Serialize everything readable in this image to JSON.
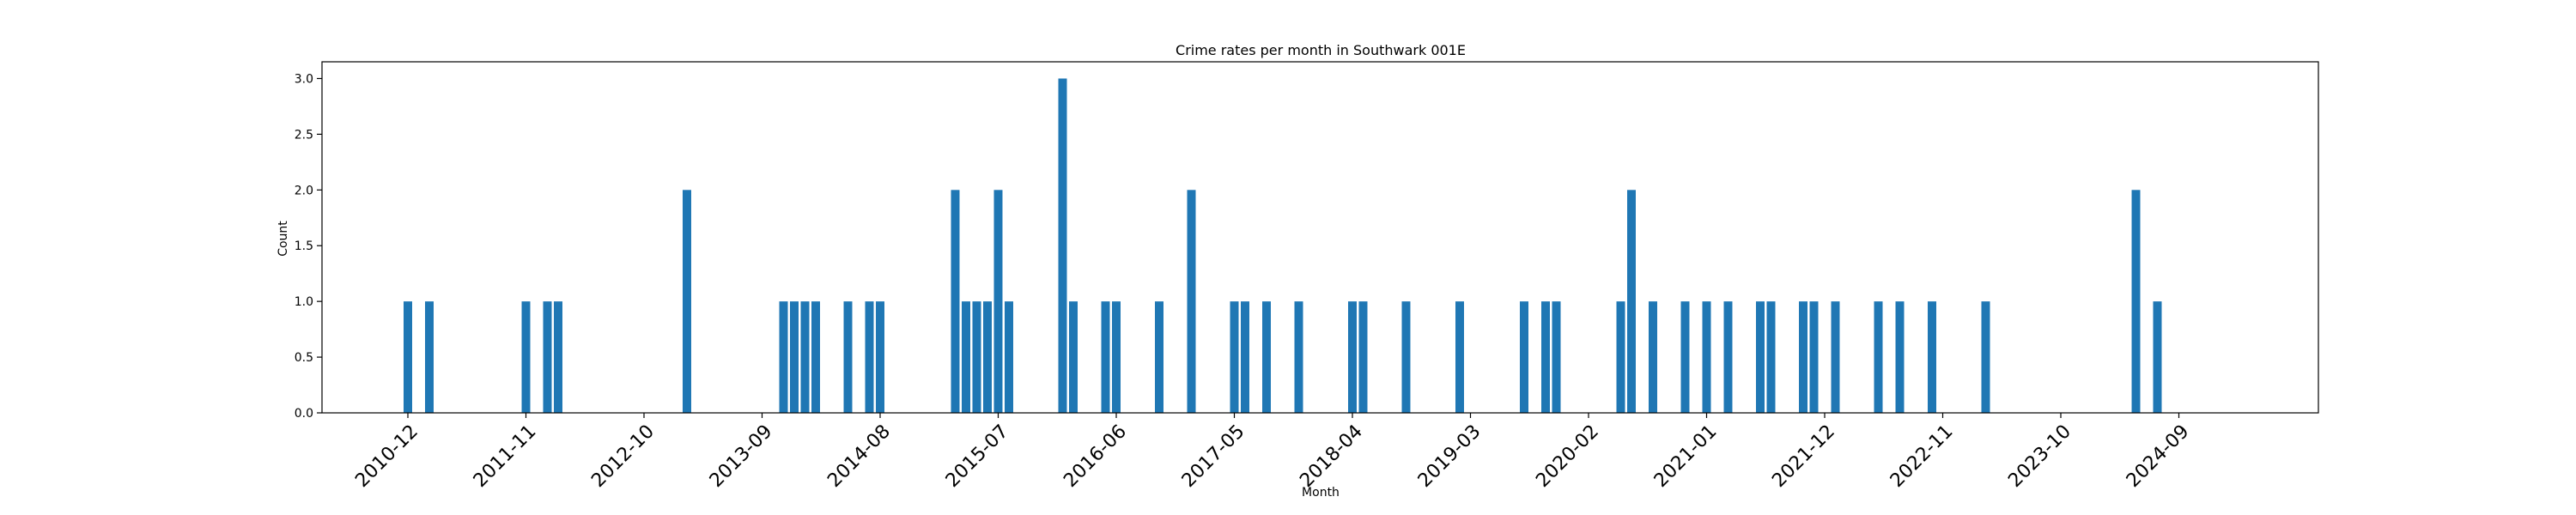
{
  "chart_data": {
    "type": "bar",
    "title": "Crime rates per month in Southwark 001E",
    "xlabel": "Month",
    "ylabel": "Count",
    "ylim": [
      0,
      3.15
    ],
    "grid": false,
    "color": "#1f77b4",
    "x_range": [
      "2010-04",
      "2025-10"
    ],
    "yticks": [
      "0.0",
      "0.5",
      "1.0",
      "1.5",
      "2.0",
      "2.5",
      "3.0"
    ],
    "xticks": [
      "2010-12",
      "2011-11",
      "2012-10",
      "2013-09",
      "2014-08",
      "2015-07",
      "2016-06",
      "2017-05",
      "2018-04",
      "2019-03",
      "2020-02",
      "2021-01",
      "2021-12",
      "2022-11",
      "2023-10",
      "2024-09"
    ],
    "months": [
      "2010-12",
      "2011-02",
      "2011-11",
      "2012-01",
      "2012-02",
      "2013-02",
      "2013-11",
      "2013-12",
      "2014-01",
      "2014-02",
      "2014-05",
      "2014-07",
      "2014-08",
      "2015-03",
      "2015-04",
      "2015-05",
      "2015-06",
      "2015-07",
      "2015-08",
      "2016-01",
      "2016-02",
      "2016-05",
      "2016-06",
      "2016-10",
      "2017-01",
      "2017-05",
      "2017-06",
      "2017-08",
      "2017-11",
      "2018-04",
      "2018-05",
      "2018-09",
      "2019-02",
      "2019-08",
      "2019-10",
      "2019-11",
      "2020-05",
      "2020-06",
      "2020-08",
      "2020-11",
      "2021-01",
      "2021-03",
      "2021-06",
      "2021-07",
      "2021-10",
      "2021-11",
      "2022-01",
      "2022-05",
      "2022-07",
      "2022-10",
      "2023-03",
      "2024-05",
      "2024-07"
    ],
    "values": [
      1,
      1,
      1,
      1,
      1,
      2,
      1,
      1,
      1,
      1,
      1,
      1,
      1,
      2,
      1,
      1,
      1,
      2,
      1,
      3,
      1,
      1,
      1,
      1,
      2,
      1,
      1,
      1,
      1,
      1,
      1,
      1,
      1,
      1,
      1,
      1,
      1,
      2,
      1,
      1,
      1,
      1,
      1,
      1,
      1,
      1,
      1,
      1,
      1,
      1,
      1,
      2,
      1
    ]
  }
}
